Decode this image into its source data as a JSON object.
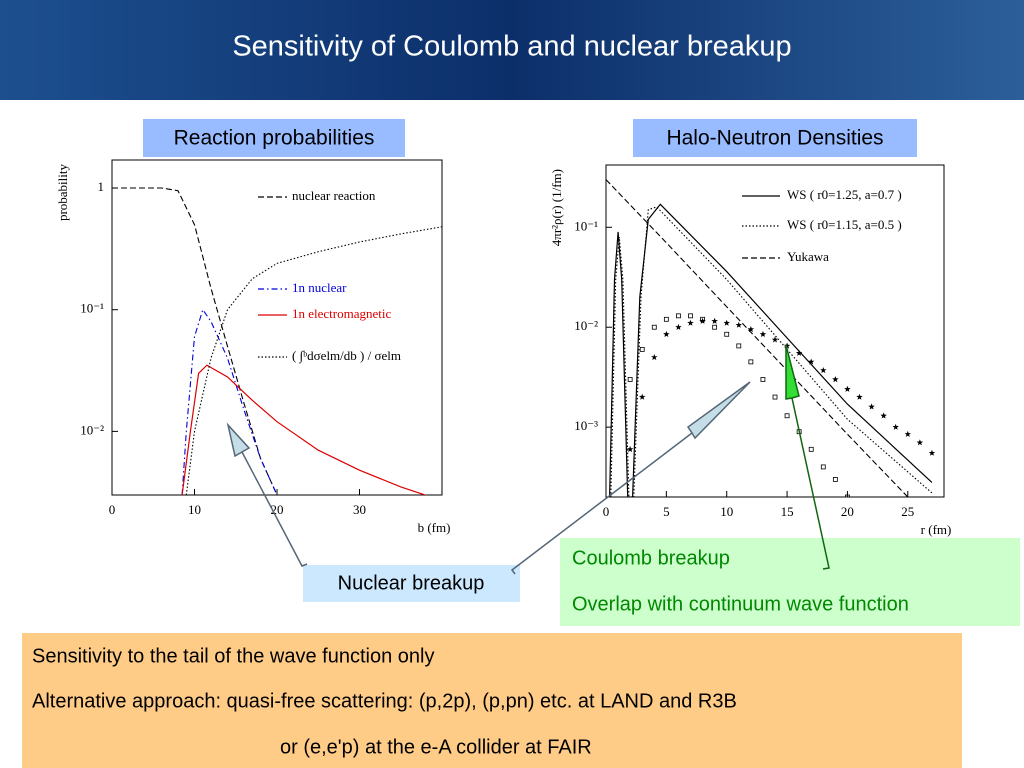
{
  "slide": {
    "title": "Sensitivity of Coulomb and nuclear breakup",
    "left_heading": "Reaction probabilities",
    "right_heading": "Halo-Neutron Densities",
    "nuclear_note": "Nuclear breakup",
    "coulomb_note": [
      "Coulomb breakup",
      "Overlap with continuum wave function"
    ],
    "summary": [
      "Sensitivity to the tail of the wave function only",
      "Alternative approach: quasi-free scattering: (p,2p), (p,pn) etc. at LAND and R3B",
      "or (e,e'p) at the e-A collider at FAIR"
    ]
  },
  "chart_data": [
    {
      "type": "line",
      "xlabel": "b (fm)",
      "ylabel": "probability",
      "log_y": true,
      "xlim": [
        0,
        40
      ],
      "xticks": [
        0,
        10,
        20,
        30
      ],
      "ylim": [
        0.003,
        1.7
      ],
      "yticks": [
        1,
        {
          "value": 0.1,
          "label": "10⁻¹"
        },
        {
          "value": 0.01,
          "label": "10⁻²"
        }
      ],
      "series": [
        {
          "name": "nuclear reaction",
          "color": "#000000",
          "style": "dashed",
          "x": [
            0,
            6,
            8,
            10,
            12,
            14,
            16,
            18,
            20
          ],
          "values": [
            1,
            1,
            0.95,
            0.5,
            0.15,
            0.05,
            0.017,
            0.006,
            0.003
          ]
        },
        {
          "name": "1n nuclear",
          "color": "#0000dd",
          "style": "dashdot",
          "x": [
            8.5,
            9,
            10,
            11,
            12,
            14,
            16,
            18,
            20
          ],
          "values": [
            0.003,
            0.01,
            0.06,
            0.1,
            0.08,
            0.04,
            0.015,
            0.006,
            0.003
          ]
        },
        {
          "name": "1n electromagnetic",
          "color": "#dd0000",
          "style": "solid",
          "x": [
            8.5,
            9.5,
            10.5,
            11.5,
            14,
            17,
            20,
            25,
            30,
            35,
            40
          ],
          "values": [
            0.003,
            0.01,
            0.03,
            0.035,
            0.028,
            0.018,
            0.012,
            0.007,
            0.0048,
            0.0035,
            0.0027
          ]
        },
        {
          "name": "( ∫ᵇdσelm/db ) / σelm",
          "color": "#000000",
          "style": "dotted",
          "x": [
            9,
            10,
            12,
            14,
            17,
            20,
            25,
            30,
            35,
            40
          ],
          "values": [
            0.003,
            0.01,
            0.04,
            0.1,
            0.18,
            0.24,
            0.3,
            0.36,
            0.42,
            0.48
          ]
        }
      ]
    },
    {
      "type": "line",
      "xlabel": "r (fm)",
      "ylabel": "4πr²ρ(r) (1/fm)",
      "log_y": true,
      "xlim": [
        0,
        28
      ],
      "xticks": [
        0,
        5,
        10,
        15,
        20,
        25
      ],
      "ylim": [
        0.0002,
        0.42
      ],
      "yticks": [
        {
          "value": 0.1,
          "label": "10⁻¹"
        },
        {
          "value": 0.01,
          "label": "10⁻²"
        },
        {
          "value": 0.001,
          "label": "10⁻³"
        }
      ],
      "series": [
        {
          "name": "WS ( r0=1.25, a=0.7 )",
          "color": "#000000",
          "style": "solid",
          "x": [
            0.3,
            0.7,
            1.0,
            1.3,
            1.8,
            2.2,
            2.8,
            3.5,
            4.5,
            10,
            15,
            20,
            27
          ],
          "values": [
            0.0002,
            0.03,
            0.09,
            0.03,
            0.0002,
            0.0002,
            0.02,
            0.12,
            0.17,
            0.036,
            0.0078,
            0.0017,
            0.00028
          ]
        },
        {
          "name": "WS ( r0=1.15, a=0.5 )",
          "color": "#000000",
          "style": "dotted",
          "x": [
            0.4,
            0.8,
            1.1,
            1.4,
            1.9,
            2.3,
            2.9,
            3.5,
            4.2,
            10,
            15,
            20,
            27
          ],
          "values": [
            0.0002,
            0.03,
            0.08,
            0.03,
            0.0002,
            0.0002,
            0.02,
            0.15,
            0.16,
            0.03,
            0.006,
            0.0012,
            0.00022
          ]
        },
        {
          "name": "Yukawa",
          "color": "#000000",
          "style": "dashed",
          "x": [
            0,
            5,
            10,
            15,
            20,
            25
          ],
          "values": [
            0.3,
            0.07,
            0.016,
            0.0037,
            0.00085,
            0.0002
          ]
        },
        {
          "color": "#000000",
          "style": "star",
          "x": [
            2,
            3,
            4,
            5,
            6,
            7,
            8,
            9,
            10,
            11,
            12,
            13,
            14,
            15,
            16,
            17,
            18,
            19,
            20,
            21,
            22,
            23,
            24,
            25,
            26,
            27
          ],
          "values": [
            0.0006,
            0.002,
            0.005,
            0.0085,
            0.01,
            0.011,
            0.0115,
            0.0115,
            0.011,
            0.0105,
            0.0095,
            0.0085,
            0.0075,
            0.0065,
            0.0055,
            0.0045,
            0.0037,
            0.003,
            0.0024,
            0.002,
            0.0016,
            0.0013,
            0.001,
            0.00085,
            0.0007,
            0.00055
          ]
        },
        {
          "color": "#000000",
          "style": "square",
          "x": [
            2,
            3,
            4,
            5,
            6,
            7,
            8,
            9,
            10,
            11,
            12,
            13,
            14,
            15,
            16,
            17,
            18,
            19,
            20
          ],
          "values": [
            0.003,
            0.006,
            0.01,
            0.012,
            0.013,
            0.013,
            0.012,
            0.01,
            0.0085,
            0.0065,
            0.0045,
            0.003,
            0.002,
            0.0013,
            0.0009,
            0.0006,
            0.0004,
            0.0003,
            0.0002
          ]
        }
      ]
    }
  ]
}
